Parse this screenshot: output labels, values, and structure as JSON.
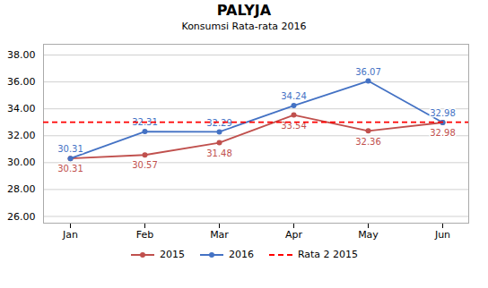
{
  "chart_data": {
    "type": "line",
    "title": "PALYJA",
    "subtitle": "Konsumsi Rata-rata 2016",
    "categories": [
      "Jan",
      "Feb",
      "Mar",
      "Apr",
      "May",
      "Jun"
    ],
    "series": [
      {
        "name": "2015",
        "color": "#C0504D",
        "marker": "circle",
        "line_style": "solid",
        "values": [
          30.31,
          30.57,
          31.48,
          33.54,
          32.36,
          32.98
        ]
      },
      {
        "name": "2016",
        "color": "#4472C4",
        "marker": "circle",
        "line_style": "solid",
        "values": [
          30.31,
          32.31,
          32.29,
          34.24,
          36.07,
          32.98
        ]
      },
      {
        "name": "Rata 2 2015",
        "type": "hline",
        "color": "#FF0000",
        "line_style": "dashed",
        "value": 33.0
      }
    ],
    "ylim": [
      25.5,
      38.8
    ],
    "yticks": [
      {
        "value": 26.0,
        "label": "26.00"
      },
      {
        "value": 28.0,
        "label": "28.00"
      },
      {
        "value": 30.0,
        "label": "30.00"
      },
      {
        "value": 32.0,
        "label": "32.00"
      },
      {
        "value": 34.0,
        "label": "34.00"
      },
      {
        "value": 36.0,
        "label": "36.00"
      },
      {
        "value": 38.0,
        "label": "38.00"
      }
    ],
    "grid": true,
    "data_labels": true,
    "legend": "bottom"
  }
}
